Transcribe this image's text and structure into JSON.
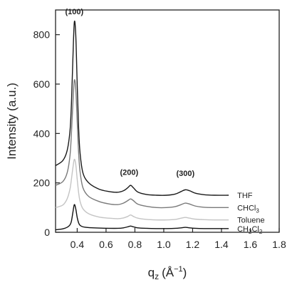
{
  "chart_data": {
    "type": "line",
    "title": "",
    "xlabel": "q",
    "xlabel_sub": "z",
    "xlabel_unit": "(Å",
    "xlabel_unit_sup": "−1",
    "xlabel_unit_close": ")",
    "ylabel": "Intensity (a.u.)",
    "xlim": [
      0.25,
      1.8
    ],
    "ylim": [
      0,
      900
    ],
    "x_ticks": [
      0.4,
      0.6,
      0.8,
      1.0,
      1.2,
      1.4,
      1.6,
      1.8
    ],
    "x_tick_labels": [
      "0.4",
      "0.6",
      "0.8",
      "1.0",
      "1.2",
      "1.4",
      "1.6",
      "1.8"
    ],
    "y_ticks": [
      0,
      200,
      400,
      600,
      800
    ],
    "y_tick_labels": [
      "0",
      "200",
      "400",
      "600",
      "800"
    ],
    "grid": false,
    "legend": "inline labels at right end of each curve",
    "peak_labels": [
      {
        "text": "(100)",
        "x": 0.38,
        "y": 865
      },
      {
        "text": "(200)",
        "x": 0.76,
        "y": 215
      },
      {
        "text": "(300)",
        "x": 1.15,
        "y": 210
      }
    ],
    "series": [
      {
        "name": "THF",
        "name_main": "THF",
        "name_sub": "",
        "name_tail": "",
        "color": "#1a1a1a",
        "x": [
          0.25,
          0.3,
          0.33,
          0.35,
          0.36,
          0.37,
          0.38,
          0.39,
          0.4,
          0.41,
          0.42,
          0.44,
          0.48,
          0.55,
          0.62,
          0.68,
          0.72,
          0.75,
          0.77,
          0.79,
          0.82,
          0.88,
          0.95,
          1.02,
          1.08,
          1.12,
          1.15,
          1.18,
          1.22,
          1.28,
          1.35,
          1.45
        ],
        "y": [
          270,
          290,
          330,
          410,
          520,
          700,
          850,
          800,
          600,
          420,
          320,
          240,
          200,
          175,
          165,
          162,
          168,
          180,
          190,
          180,
          163,
          153,
          150,
          150,
          155,
          165,
          172,
          168,
          158,
          152,
          150,
          150
        ]
      },
      {
        "name": "CHCl3",
        "name_main": "CHCl",
        "name_sub": "3",
        "name_tail": "",
        "color": "#7a7a7a",
        "x": [
          0.25,
          0.3,
          0.33,
          0.35,
          0.36,
          0.37,
          0.38,
          0.39,
          0.4,
          0.41,
          0.42,
          0.44,
          0.48,
          0.55,
          0.62,
          0.68,
          0.72,
          0.75,
          0.77,
          0.79,
          0.82,
          0.88,
          0.95,
          1.02,
          1.08,
          1.12,
          1.15,
          1.18,
          1.22,
          1.28,
          1.35,
          1.45
        ],
        "y": [
          190,
          205,
          240,
          310,
          400,
          520,
          615,
          580,
          450,
          320,
          245,
          180,
          145,
          125,
          115,
          112,
          118,
          128,
          135,
          128,
          114,
          105,
          100,
          100,
          104,
          112,
          118,
          114,
          106,
          101,
          100,
          100
        ]
      },
      {
        "name": "Toluene",
        "name_main": "Toluene",
        "name_sub": "",
        "name_tail": "",
        "color": "#c4c4c4",
        "x": [
          0.25,
          0.3,
          0.33,
          0.35,
          0.36,
          0.37,
          0.38,
          0.39,
          0.4,
          0.41,
          0.42,
          0.44,
          0.48,
          0.55,
          0.62,
          0.68,
          0.72,
          0.75,
          0.77,
          0.79,
          0.82,
          0.88,
          0.95,
          1.02,
          1.08,
          1.12,
          1.15,
          1.18,
          1.22,
          1.28,
          1.35,
          1.45
        ],
        "y": [
          100,
          110,
          135,
          175,
          215,
          260,
          295,
          275,
          215,
          160,
          125,
          95,
          75,
          62,
          57,
          55,
          58,
          64,
          70,
          64,
          57,
          52,
          50,
          50,
          52,
          57,
          60,
          57,
          53,
          51,
          50,
          50
        ]
      },
      {
        "name": "CH2Cl2",
        "name_main": "CH",
        "name_sub": "2",
        "name_tail": "Cl",
        "name_sub2": "2",
        "color": "#111111",
        "x": [
          0.25,
          0.3,
          0.33,
          0.35,
          0.36,
          0.37,
          0.38,
          0.39,
          0.4,
          0.41,
          0.42,
          0.44,
          0.48,
          0.55,
          0.62,
          0.68,
          0.72,
          0.75,
          0.77,
          0.79,
          0.82,
          0.88,
          0.95,
          1.02,
          1.08,
          1.12,
          1.15,
          1.18,
          1.22,
          1.28,
          1.35,
          1.45
        ],
        "y": [
          10,
          14,
          20,
          30,
          45,
          80,
          112,
          95,
          60,
          38,
          28,
          22,
          19,
          17,
          16,
          16,
          18,
          22,
          25,
          22,
          18,
          16,
          15,
          15,
          16,
          18,
          20,
          18,
          16,
          15,
          15,
          15
        ]
      }
    ]
  }
}
